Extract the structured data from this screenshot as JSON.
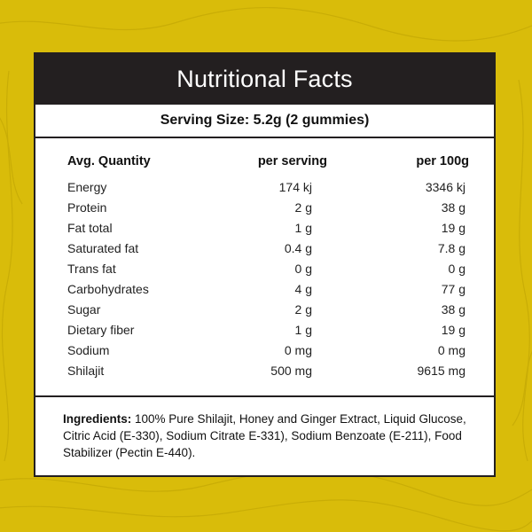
{
  "colors": {
    "background": "#d9bc0a",
    "panel": "#ffffff",
    "title_bar": "#231f20"
  },
  "label": {
    "title": "Nutritional Facts",
    "serving_size": "Serving Size: 5.2g (2 gummies)",
    "headers": {
      "quantity": "Avg. Quantity",
      "per_serving": "per serving",
      "per_100g": "per 100g"
    },
    "rows": [
      {
        "name": "Energy",
        "per_serving": "174 kj",
        "per_100g": "3346 kj"
      },
      {
        "name": "Protein",
        "per_serving": "2 g",
        "per_100g": "38 g"
      },
      {
        "name": "Fat total",
        "per_serving": "1 g",
        "per_100g": "19 g"
      },
      {
        "name": "Saturated fat",
        "per_serving": "0.4 g",
        "per_100g": "7.8 g"
      },
      {
        "name": "Trans fat",
        "per_serving": "0 g",
        "per_100g": "0 g"
      },
      {
        "name": "Carbohydrates",
        "per_serving": "4 g",
        "per_100g": "77 g"
      },
      {
        "name": "Sugar",
        "per_serving": "2 g",
        "per_100g": "38 g"
      },
      {
        "name": "Dietary fiber",
        "per_serving": "1 g",
        "per_100g": "19 g"
      },
      {
        "name": "Sodium",
        "per_serving": "0 mg",
        "per_100g": "0 mg"
      },
      {
        "name": "Shilajit",
        "per_serving": "500 mg",
        "per_100g": "9615 mg"
      }
    ],
    "ingredients_label": "Ingredients:",
    "ingredients_text": " 100% Pure Shilajit, Honey and Ginger Extract, Liquid Glucose, Citric Acid (E-330), Sodium Citrate E-331), Sodium Benzoate (E-211), Food Stabilizer (Pectin E-440)."
  }
}
